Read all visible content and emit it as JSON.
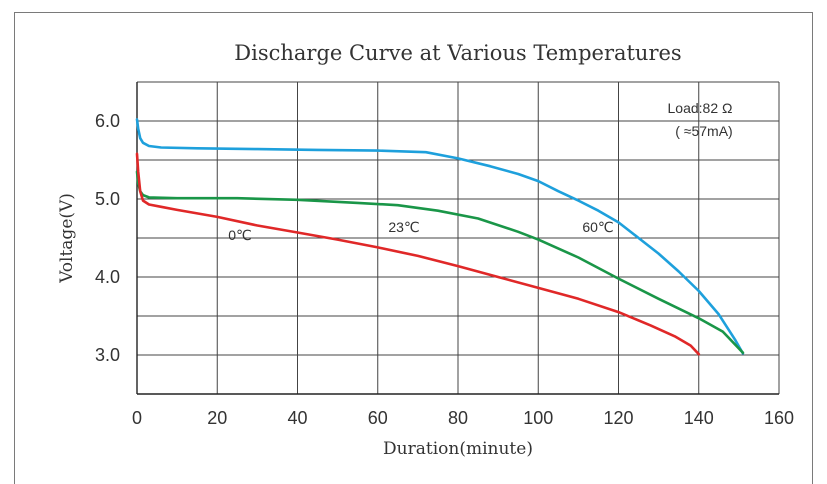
{
  "chart_data": {
    "type": "line",
    "title": "Discharge  Curve at Various Temperatures",
    "xlabel": "Duration(minute)",
    "ylabel": "Voltage(V)",
    "xlim": [
      0,
      160
    ],
    "ylim": [
      2.5,
      6.5
    ],
    "x_ticks": [
      "0",
      "20",
      "40",
      "60",
      "80",
      "100",
      "120",
      "140",
      "160"
    ],
    "y_ticks": [
      "3.0",
      "4.0",
      "5.0",
      "6.0"
    ],
    "grid": true,
    "annotations": {
      "load_line1": "Load:82 Ω",
      "load_line2": "( ≈57mA)"
    },
    "series": [
      {
        "name": "60℃",
        "color": "#1ea0dc",
        "points": [
          [
            0,
            6.02
          ],
          [
            0.3,
            5.9
          ],
          [
            0.8,
            5.78
          ],
          [
            1.5,
            5.72
          ],
          [
            3,
            5.68
          ],
          [
            6,
            5.66
          ],
          [
            15,
            5.65
          ],
          [
            30,
            5.64
          ],
          [
            45,
            5.63
          ],
          [
            60,
            5.62
          ],
          [
            72,
            5.6
          ],
          [
            80,
            5.52
          ],
          [
            88,
            5.42
          ],
          [
            95,
            5.32
          ],
          [
            100,
            5.23
          ],
          [
            105,
            5.1
          ],
          [
            110,
            4.98
          ],
          [
            115,
            4.85
          ],
          [
            120,
            4.7
          ],
          [
            125,
            4.5
          ],
          [
            130,
            4.3
          ],
          [
            135,
            4.07
          ],
          [
            140,
            3.82
          ],
          [
            145,
            3.52
          ],
          [
            149,
            3.2
          ],
          [
            151,
            3.02
          ]
        ]
      },
      {
        "name": "23℃",
        "color": "#1a9648",
        "points": [
          [
            0,
            5.35
          ],
          [
            0.3,
            5.2
          ],
          [
            0.8,
            5.1
          ],
          [
            1.5,
            5.05
          ],
          [
            3,
            5.02
          ],
          [
            10,
            5.01
          ],
          [
            25,
            5.01
          ],
          [
            40,
            4.99
          ],
          [
            55,
            4.95
          ],
          [
            65,
            4.92
          ],
          [
            75,
            4.85
          ],
          [
            85,
            4.75
          ],
          [
            95,
            4.58
          ],
          [
            100,
            4.48
          ],
          [
            110,
            4.25
          ],
          [
            120,
            3.98
          ],
          [
            130,
            3.72
          ],
          [
            140,
            3.47
          ],
          [
            146,
            3.3
          ],
          [
            151,
            3.03
          ]
        ]
      },
      {
        "name": "0℃",
        "color": "#e02828",
        "points": [
          [
            0,
            5.58
          ],
          [
            0.3,
            5.35
          ],
          [
            0.8,
            5.1
          ],
          [
            1.5,
            4.98
          ],
          [
            3,
            4.93
          ],
          [
            6,
            4.9
          ],
          [
            10,
            4.86
          ],
          [
            20,
            4.77
          ],
          [
            30,
            4.66
          ],
          [
            40,
            4.57
          ],
          [
            50,
            4.48
          ],
          [
            60,
            4.38
          ],
          [
            70,
            4.27
          ],
          [
            80,
            4.14
          ],
          [
            90,
            4.0
          ],
          [
            100,
            3.86
          ],
          [
            110,
            3.72
          ],
          [
            120,
            3.55
          ],
          [
            128,
            3.38
          ],
          [
            134,
            3.24
          ],
          [
            138,
            3.12
          ],
          [
            140,
            3.01
          ]
        ]
      }
    ]
  }
}
